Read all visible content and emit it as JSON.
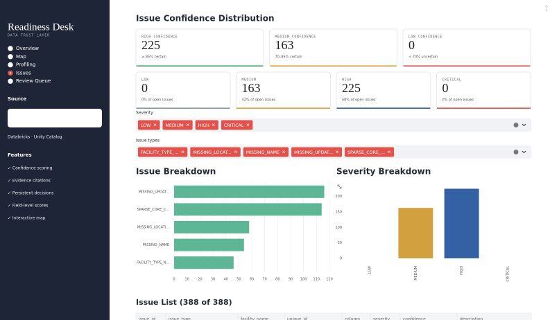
{
  "sidebar": {
    "brand": "Readiness Desk",
    "tagline": "DATA TRUST LAYER",
    "nav": [
      "Overview",
      "Map",
      "Profiling",
      "Issues",
      "Review Queue"
    ],
    "selected_index": 3,
    "source_heading": "Source",
    "source_value": "Databricks · Unity Catalog",
    "features_heading": "Features",
    "features": [
      "✓ Confidence scoring",
      "✓ Evidence citations",
      "✓ Persistent decisions",
      "✓ Field-level scores",
      "✓ Interactive map"
    ]
  },
  "page_title": "Issue Confidence Distribution",
  "confidence_cards": [
    {
      "label": "HIGH CONFIDENCE",
      "value": 225,
      "note": "≥ 85% certain",
      "color": "#3ea86c"
    },
    {
      "label": "MEDIUM CONFIDENCE",
      "value": 163,
      "note": "70–85% certain",
      "color": "#d9a33a"
    },
    {
      "label": "LOW CONFIDENCE",
      "value": 0,
      "note": "< 70% uncertain",
      "color": "#e0524a"
    }
  ],
  "severity_cards": [
    {
      "label": "LOW",
      "value": 0,
      "note": "0% of open issues",
      "color": "#8a93a3"
    },
    {
      "label": "MEDIUM",
      "value": 163,
      "note": "42% of open issues",
      "color": "#d9a33a"
    },
    {
      "label": "HIGH",
      "value": 225,
      "note": "58% of open issues",
      "color": "#2f5fa2"
    },
    {
      "label": "CRITICAL",
      "value": 0,
      "note": "0% of open issues",
      "color": "#e0524a"
    }
  ],
  "filters": [
    {
      "label": "Severity",
      "chips": [
        "LOW",
        "MEDIUM",
        "HIGH",
        "CRITICAL"
      ]
    },
    {
      "label": "Issue types",
      "chips": [
        "FACILITY_TYPE_...",
        "MISSING_LOCAT...",
        "MISSING_NAME",
        "MISSING_UPDAT...",
        "SPARSE_CORE_..."
      ]
    }
  ],
  "chart_data": [
    {
      "type": "bar",
      "orientation": "horizontal",
      "title": "Issue Breakdown",
      "categories": [
        "MISSING_UPDAT...",
        "SPARSE_CORE_C...",
        "MISSING_LOCATI...",
        "MISSING_NAME",
        "FACILITY_TYPE_N..."
      ],
      "values": [
        116,
        114,
        58,
        54,
        46
      ],
      "color": "#5db796",
      "xlim": [
        0,
        120
      ],
      "xticks": [
        0,
        10,
        20,
        30,
        40,
        50,
        60,
        70,
        80,
        90,
        100,
        110,
        120
      ],
      "grid": true
    },
    {
      "type": "bar",
      "orientation": "vertical",
      "title": "Severity Breakdown",
      "categories": [
        "LOW",
        "MEDIUM",
        "HIGH",
        "CRITICAL"
      ],
      "values": [
        0,
        163,
        225,
        0
      ],
      "colors": [
        "#8a93a3",
        "#d3a03f",
        "#3361a3",
        "#e0524a"
      ],
      "ylim": [
        0,
        235
      ],
      "yticks": [
        0,
        50,
        100,
        150,
        200
      ],
      "grid": false
    }
  ],
  "table": {
    "title": "Issue List (388 of 388)",
    "columns": [
      "issue_id",
      "issue_type",
      "facility_name",
      "unique_id",
      "column",
      "severity",
      "confidence",
      "description"
    ]
  }
}
